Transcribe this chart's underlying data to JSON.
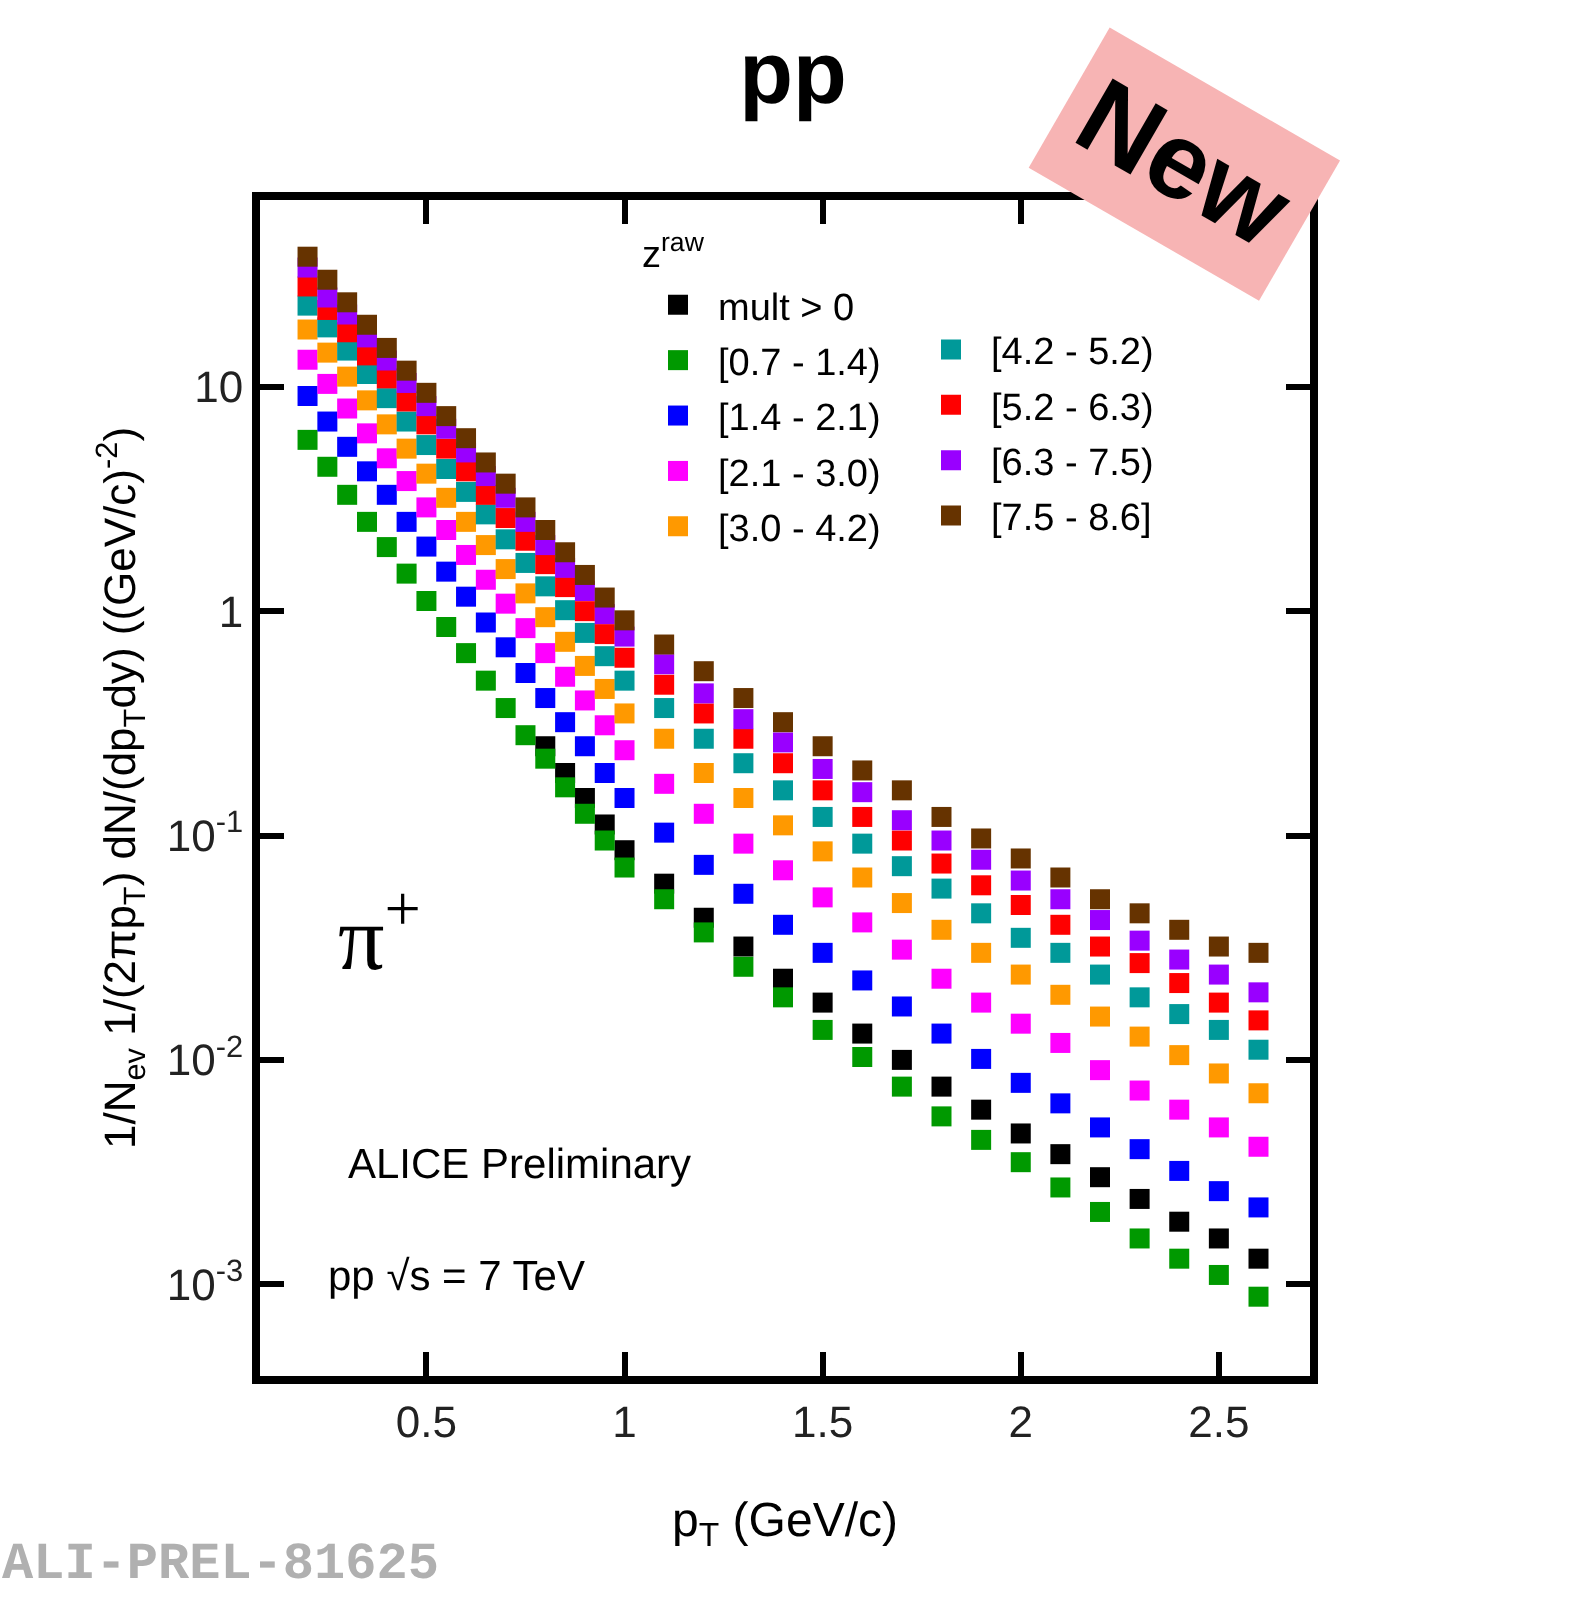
{
  "chart_data": {
    "type": "scatter",
    "title": "pp",
    "xlabel": "p$_{T}$ (GeV/c)",
    "ylabel": "1/N$_{ev}$ 1/(2πp$_{T}$) dN/(dp$_{T}$dy) ((GeV/c)$^{-2}$)",
    "legend_title": "z$^{raw}$",
    "annotations": [
      "π$^{+}$",
      "ALICE Preliminary",
      "pp √s = 7 TeV",
      "ALI-PREL-81625",
      "New"
    ],
    "x": [
      0.2,
      0.25,
      0.3,
      0.35,
      0.4,
      0.45,
      0.5,
      0.55,
      0.6,
      0.65,
      0.7,
      0.75,
      0.8,
      0.85,
      0.9,
      0.95,
      1.0,
      1.1,
      1.2,
      1.3,
      1.4,
      1.5,
      1.6,
      1.7,
      1.8,
      1.9,
      2.0,
      2.1,
      2.2,
      2.3,
      2.4,
      2.5,
      2.6
    ],
    "series": [
      {
        "name": "mult > 0",
        "color": "#000000",
        "values": [
          null,
          null,
          null,
          null,
          null,
          null,
          null,
          null,
          null,
          null,
          null,
          null,
          0.25,
          0.19,
          0.147,
          0.112,
          0.086,
          0.061,
          0.043,
          0.032,
          0.023,
          0.018,
          0.0131,
          0.01,
          0.0076,
          0.006,
          0.0047,
          0.0038,
          0.003,
          0.0024,
          0.0019,
          0.0016,
          0.0013
        ]
      },
      {
        "name": "[0.7 - 1.4)",
        "color": "#009900",
        "values": [
          5.8,
          4.4,
          3.3,
          2.5,
          1.93,
          1.47,
          1.11,
          0.85,
          0.65,
          0.49,
          0.37,
          0.28,
          0.22,
          0.164,
          0.125,
          0.095,
          0.072,
          0.052,
          0.037,
          0.026,
          0.019,
          0.0136,
          0.0103,
          0.0076,
          0.0056,
          0.0044,
          0.0035,
          0.0027,
          0.0021,
          0.0016,
          0.0013,
          0.0011,
          0.00088
        ]
      },
      {
        "name": "[1.4 - 2.1)",
        "color": "#0000ff",
        "values": [
          9.1,
          7.0,
          5.4,
          4.2,
          3.3,
          2.5,
          1.94,
          1.5,
          1.16,
          0.89,
          0.69,
          0.53,
          0.41,
          0.32,
          0.25,
          0.19,
          0.147,
          0.103,
          0.074,
          0.055,
          0.04,
          0.03,
          0.0226,
          0.0173,
          0.0131,
          0.0101,
          0.0079,
          0.0064,
          0.005,
          0.004,
          0.0032,
          0.0026,
          0.0022
        ]
      },
      {
        "name": "[2.1 - 3.0)",
        "color": "#ff00ff",
        "values": [
          13.2,
          10.3,
          8.0,
          6.2,
          4.8,
          3.8,
          2.9,
          2.3,
          1.78,
          1.38,
          1.08,
          0.84,
          0.65,
          0.51,
          0.4,
          0.31,
          0.24,
          0.17,
          0.125,
          0.092,
          0.07,
          0.053,
          0.041,
          0.031,
          0.023,
          0.018,
          0.0145,
          0.0119,
          0.009,
          0.0073,
          0.006,
          0.005,
          0.0041
        ]
      },
      {
        "name": "[3.0 - 4.2)",
        "color": "#ff9900",
        "values": [
          18,
          14.2,
          11.1,
          8.7,
          6.8,
          5.3,
          4.1,
          3.2,
          2.5,
          1.97,
          1.54,
          1.2,
          0.94,
          0.73,
          0.57,
          0.45,
          0.35,
          0.27,
          0.19,
          0.147,
          0.111,
          0.085,
          0.065,
          0.05,
          0.038,
          0.03,
          0.024,
          0.0195,
          0.0156,
          0.0127,
          0.0105,
          0.0087,
          0.0071
        ]
      },
      {
        "name": "[4.2 - 5.2)",
        "color": "#009999",
        "values": [
          23,
          18.4,
          14.5,
          11.4,
          8.9,
          7.0,
          5.5,
          4.3,
          3.4,
          2.7,
          2.09,
          1.64,
          1.29,
          1.01,
          0.8,
          0.63,
          0.49,
          0.37,
          0.27,
          0.21,
          0.159,
          0.121,
          0.092,
          0.073,
          0.058,
          0.045,
          0.035,
          0.03,
          0.024,
          0.019,
          0.016,
          0.0136,
          0.0111
        ]
      },
      {
        "name": "[5.2 - 6.3)",
        "color": "#ff0000",
        "values": [
          28,
          22,
          17.5,
          13.8,
          10.9,
          8.6,
          6.8,
          5.3,
          4.2,
          3.3,
          2.6,
          2.06,
          1.62,
          1.28,
          1.0,
          0.79,
          0.62,
          0.47,
          0.35,
          0.27,
          0.21,
          0.159,
          0.121,
          0.095,
          0.075,
          0.06,
          0.049,
          0.04,
          0.032,
          0.027,
          0.022,
          0.018,
          0.015
        ]
      },
      {
        "name": "[6.3 - 7.5)",
        "color": "#9900ff",
        "values": [
          34,
          25,
          21,
          16.6,
          13.1,
          10.4,
          8.2,
          6.5,
          5.1,
          4.0,
          3.2,
          2.5,
          1.97,
          1.56,
          1.23,
          0.97,
          0.77,
          0.58,
          0.43,
          0.33,
          0.26,
          0.198,
          0.156,
          0.117,
          0.095,
          0.078,
          0.063,
          0.052,
          0.042,
          0.034,
          0.028,
          0.024,
          0.02
        ]
      },
      {
        "name": "[7.5 - 8.6]",
        "color": "#663300",
        "values": [
          38,
          30,
          23.8,
          18.9,
          14.9,
          11.8,
          9.4,
          7.4,
          5.9,
          4.6,
          3.7,
          2.9,
          2.3,
          1.83,
          1.45,
          1.15,
          0.91,
          0.71,
          0.54,
          0.41,
          0.32,
          0.25,
          0.195,
          0.159,
          0.121,
          0.097,
          0.079,
          0.065,
          0.052,
          0.045,
          0.038,
          0.032,
          0.03
        ]
      }
    ],
    "xlim": [
      0.08,
      2.73
    ],
    "xticks": [
      0.5,
      1,
      1.5,
      2,
      2.5
    ],
    "log": true,
    "ylim": [
      0.00039,
      68
    ],
    "yticks": [
      {
        "value": 0.001,
        "label": "10$^{-3}$"
      },
      {
        "value": 0.01,
        "label": "10$^{-2}$"
      },
      {
        "value": 0.1,
        "label": "10$^{-1}$"
      },
      1,
      10
    ],
    "grid": false,
    "legend": "top right",
    "marker": "square"
  }
}
